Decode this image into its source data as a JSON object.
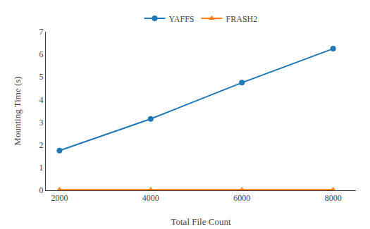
{
  "chart_data": {
    "type": "line",
    "x": [
      2000,
      4000,
      6000,
      8000
    ],
    "series": [
      {
        "name": "YAFFS",
        "values": [
          1.75,
          3.15,
          4.75,
          6.25
        ],
        "marker": "circle"
      },
      {
        "name": "FRASH2",
        "values": [
          0.02,
          0.02,
          0.02,
          0.02
        ],
        "marker": "triangle-up"
      }
    ],
    "xlabel": "Total File Count",
    "ylabel": "Mounting Time (s)",
    "xlim": [
      1700,
      8500
    ],
    "ylim": [
      0,
      7
    ],
    "xticks": [
      2000,
      4000,
      6000,
      8000
    ],
    "yticks": [
      0,
      1,
      2,
      3,
      4,
      5,
      6,
      7
    ],
    "grid": false,
    "legend": "top"
  }
}
